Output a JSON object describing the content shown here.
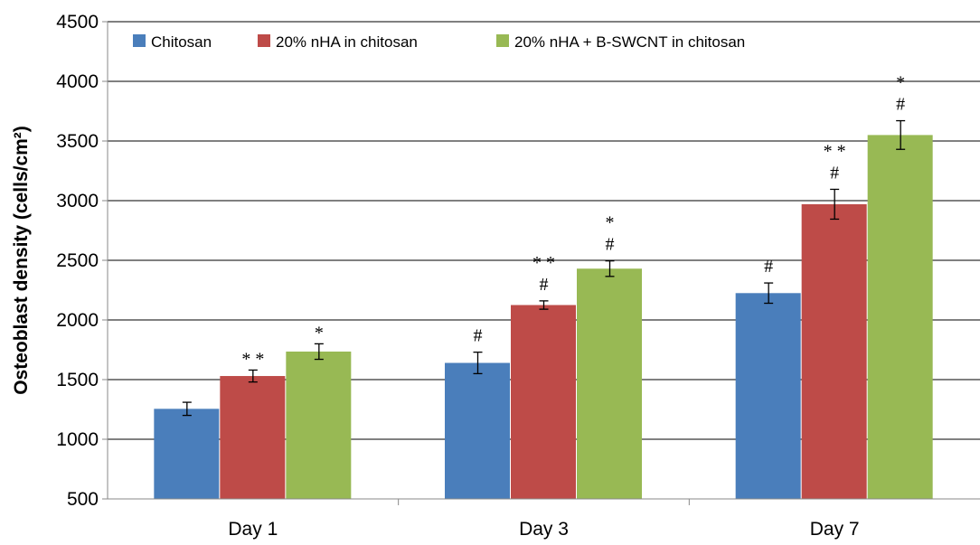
{
  "chart_data": {
    "type": "bar",
    "ylabel": "Osteoblast density (cells/cm²)",
    "ylim": [
      500,
      4500
    ],
    "yticks": [
      500,
      1000,
      1500,
      2000,
      2500,
      3000,
      3500,
      4000,
      4500
    ],
    "grid": true,
    "legend_position": "top",
    "categories": [
      "Day 1",
      "Day 3",
      "Day 7"
    ],
    "series": [
      {
        "name": "Chitosan",
        "color": "#4a7ebb",
        "values": [
          1255,
          1640,
          2225
        ],
        "errors": [
          55,
          90,
          85
        ],
        "annotations": [
          [],
          [
            "#"
          ],
          [
            "#"
          ]
        ]
      },
      {
        "name": "20% nHA in chitosan",
        "color": "#be4b48",
        "values": [
          1530,
          2125,
          2970
        ],
        "errors": [
          50,
          35,
          125
        ],
        "annotations": [
          [
            "* *"
          ],
          [
            "#",
            "* *"
          ],
          [
            "#",
            "* *"
          ]
        ]
      },
      {
        "name": "20% nHA + B-SWCNT in chitosan",
        "color": "#98b954",
        "values": [
          1735,
          2430,
          3550
        ],
        "errors": [
          65,
          65,
          120
        ],
        "annotations": [
          [
            "*"
          ],
          [
            "#",
            "*"
          ],
          [
            "#",
            "*"
          ]
        ]
      }
    ]
  }
}
